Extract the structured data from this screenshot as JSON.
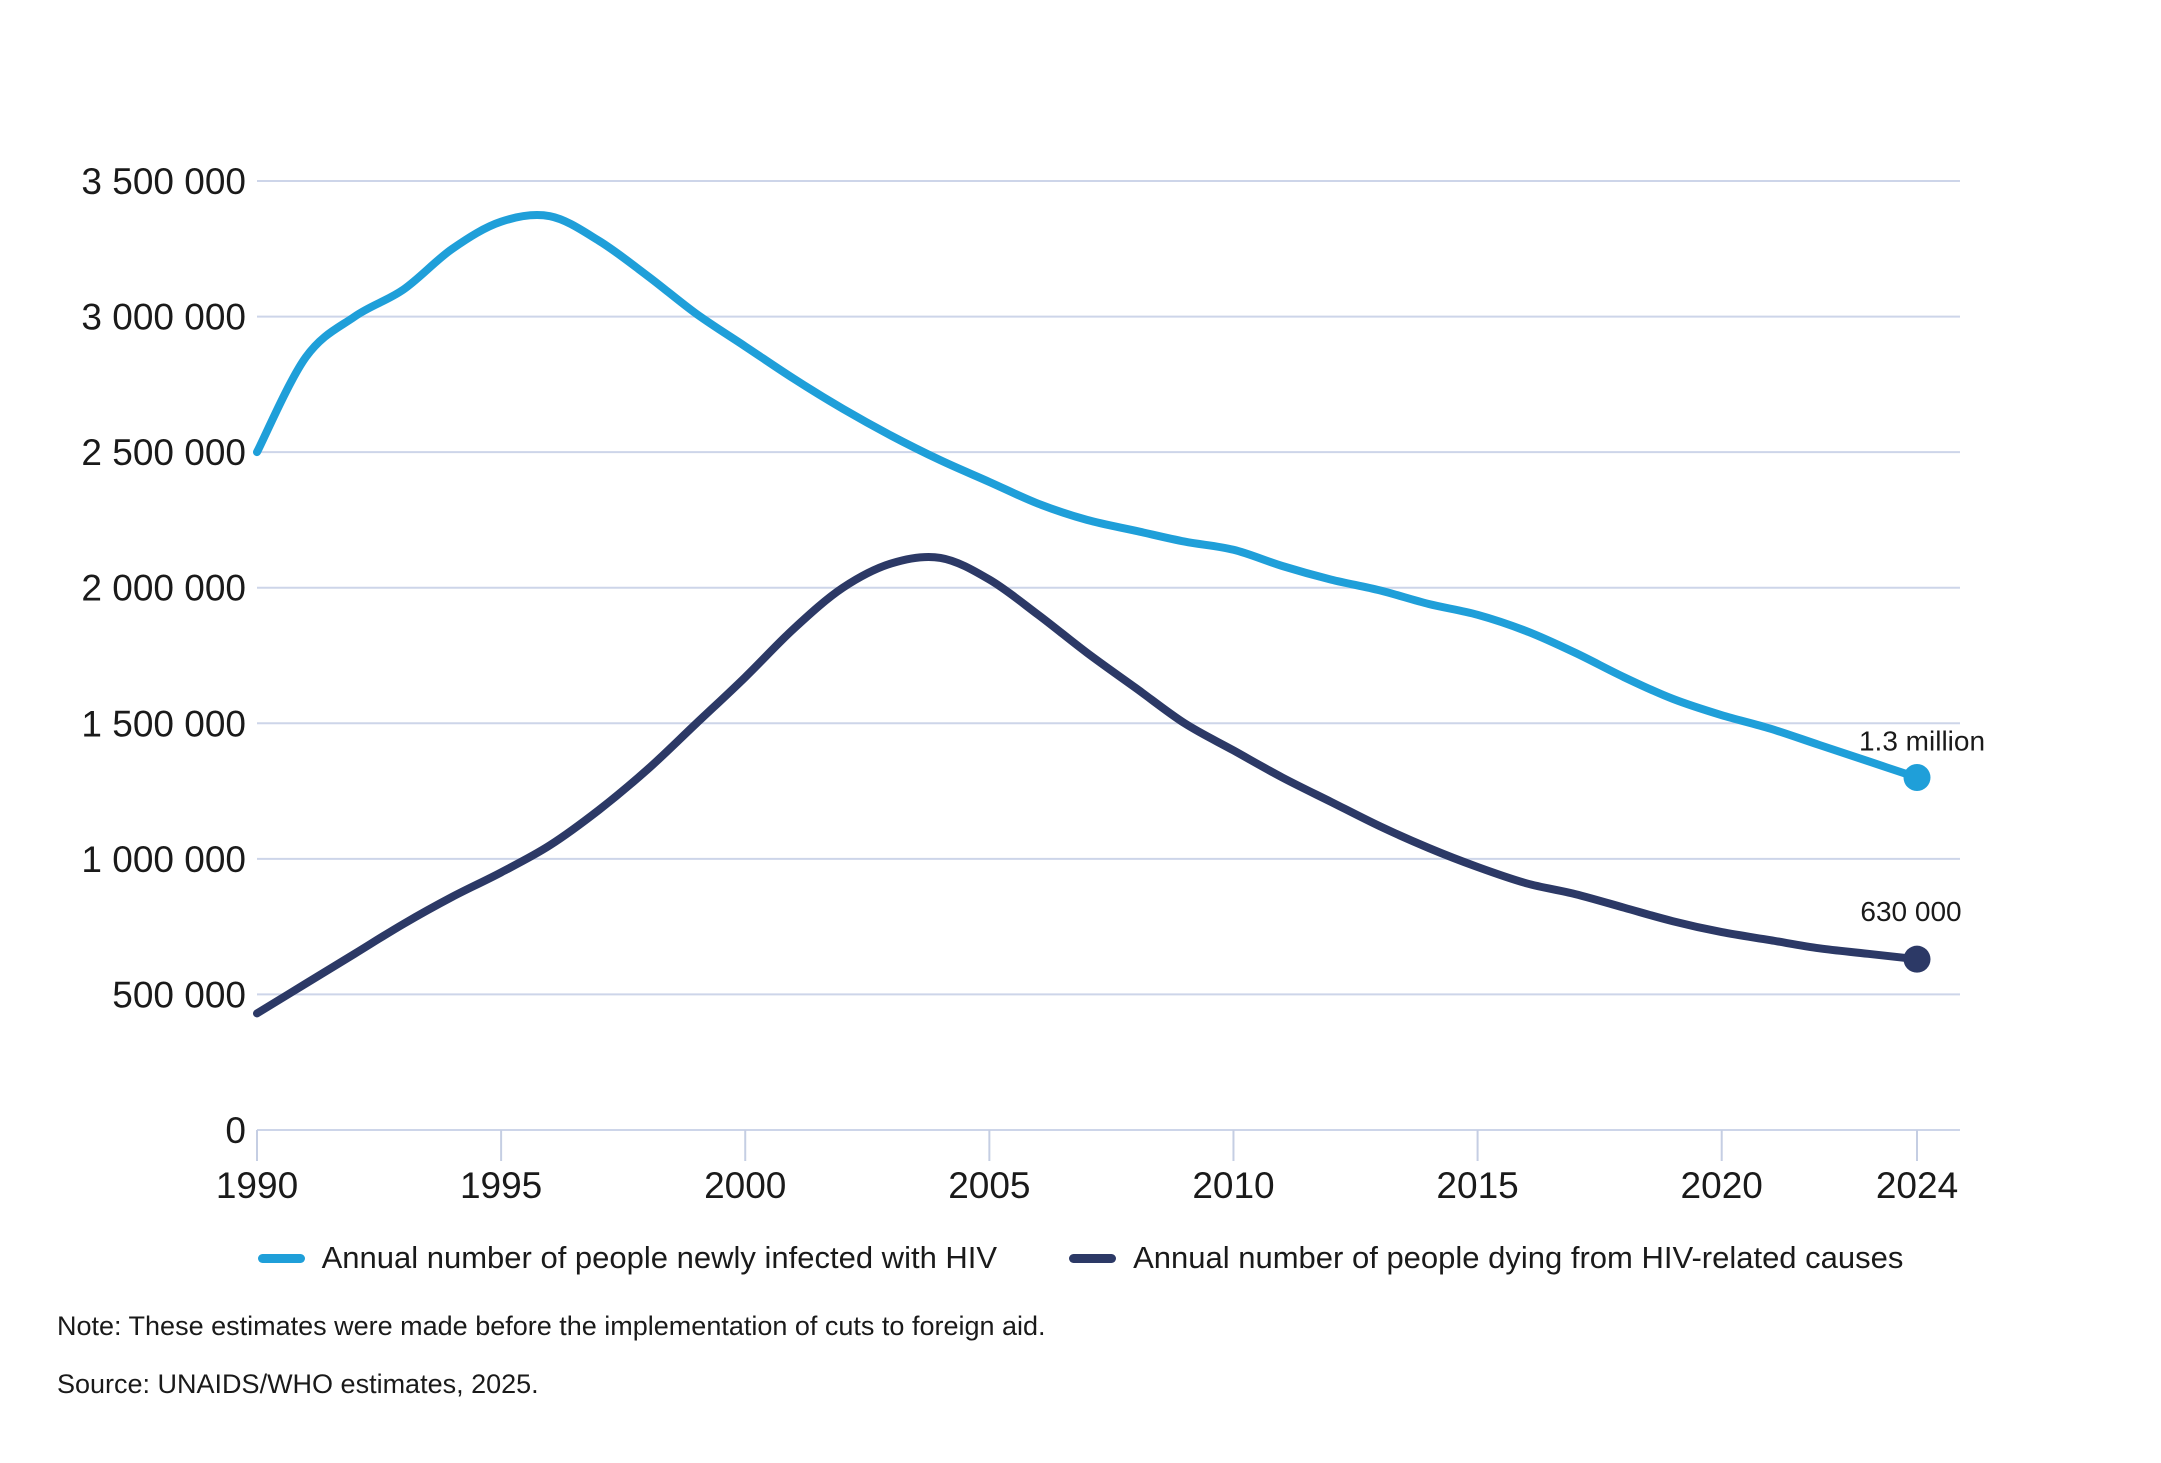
{
  "chart_data": {
    "type": "line",
    "title": "",
    "xlabel": "",
    "ylabel": "",
    "ylim": [
      0,
      3500000
    ],
    "grid": "horizontal",
    "legend_position": "bottom",
    "x": [
      1990,
      1991,
      1992,
      1993,
      1994,
      1995,
      1996,
      1997,
      1998,
      1999,
      2000,
      2001,
      2002,
      2003,
      2004,
      2005,
      2006,
      2007,
      2008,
      2009,
      2010,
      2011,
      2012,
      2013,
      2014,
      2015,
      2016,
      2017,
      2018,
      2019,
      2020,
      2021,
      2022,
      2023,
      2024
    ],
    "xticks": [
      1990,
      1995,
      2000,
      2005,
      2010,
      2015,
      2020,
      2024
    ],
    "yticks": [
      {
        "value": 0,
        "label": "0"
      },
      {
        "value": 500000,
        "label": "500 000"
      },
      {
        "value": 1000000,
        "label": "1 000 000"
      },
      {
        "value": 1500000,
        "label": "1 500 000"
      },
      {
        "value": 2000000,
        "label": "2 000 000"
      },
      {
        "value": 2500000,
        "label": "2 500 000"
      },
      {
        "value": 3000000,
        "label": "3 000 000"
      },
      {
        "value": 3500000,
        "label": "3 500 000"
      }
    ],
    "series": [
      {
        "name": "Annual number of people newly infected with HIV",
        "color": "#1f9fd9",
        "end_label": "1.3 million",
        "values": [
          2500000,
          2850000,
          3000000,
          3100000,
          3250000,
          3350000,
          3370000,
          3280000,
          3150000,
          3010000,
          2890000,
          2770000,
          2660000,
          2560000,
          2470000,
          2390000,
          2310000,
          2250000,
          2210000,
          2170000,
          2140000,
          2080000,
          2030000,
          1990000,
          1940000,
          1900000,
          1840000,
          1760000,
          1670000,
          1590000,
          1530000,
          1480000,
          1420000,
          1360000,
          1300000
        ]
      },
      {
        "name": "Annual number of people dying from HIV-related causes",
        "color": "#2c3966",
        "end_label": "630 000",
        "values": [
          430000,
          540000,
          650000,
          760000,
          860000,
          950000,
          1050000,
          1180000,
          1330000,
          1500000,
          1670000,
          1850000,
          2000000,
          2090000,
          2110000,
          2030000,
          1900000,
          1760000,
          1630000,
          1500000,
          1400000,
          1300000,
          1210000,
          1120000,
          1040000,
          970000,
          910000,
          870000,
          820000,
          770000,
          730000,
          700000,
          670000,
          650000,
          630000
        ]
      }
    ],
    "gridline_color": "#cdd5e9",
    "tick_color": "#c5cee3",
    "text_color": "#1a1a1a"
  },
  "footnotes": {
    "note": "Note: These estimates were made before the implementation of cuts to foreign aid.",
    "source": "Source: UNAIDS/WHO estimates, 2025."
  }
}
